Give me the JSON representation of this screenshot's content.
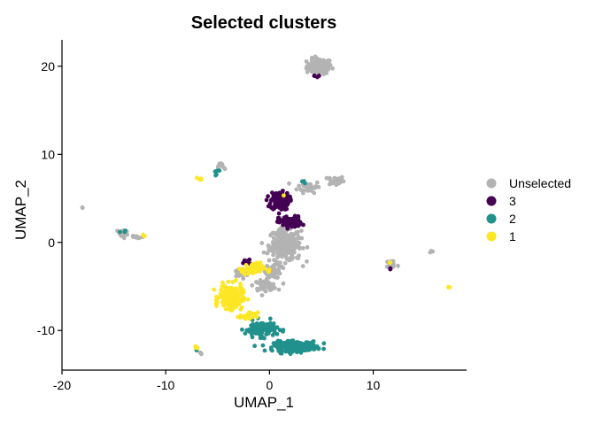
{
  "chart_data": {
    "type": "scatter",
    "title": "Selected clusters",
    "xlabel": "UMAP_1",
    "ylabel": "UMAP_2",
    "xlim": [
      -20,
      19
    ],
    "ylim": [
      -14.5,
      23
    ],
    "xticks": [
      -20,
      -10,
      0,
      10
    ],
    "yticks": [
      -10,
      0,
      10,
      20
    ],
    "grid": false,
    "legend_position": "right",
    "series": [
      {
        "name": "Unselected",
        "color": "#b3b3b3",
        "regions": [
          {
            "center": [
              4.8,
              20.0
            ],
            "spread": [
              1.1,
              0.8
            ],
            "count": 110
          },
          {
            "center": [
              6.4,
              7.0
            ],
            "spread": [
              0.7,
              0.5
            ],
            "count": 35
          },
          {
            "center": [
              3.8,
              6.3
            ],
            "spread": [
              1.0,
              0.6
            ],
            "count": 40
          },
          {
            "center": [
              1.5,
              -0.3
            ],
            "spread": [
              1.4,
              1.7
            ],
            "count": 260
          },
          {
            "center": [
              0.4,
              -3.2
            ],
            "spread": [
              0.7,
              0.8
            ],
            "count": 55
          },
          {
            "center": [
              -0.4,
              -4.9
            ],
            "spread": [
              1.0,
              0.5
            ],
            "count": 60
          },
          {
            "center": [
              -2.8,
              -3.5
            ],
            "spread": [
              0.8,
              0.5
            ],
            "count": 30
          },
          {
            "center": [
              -4.6,
              8.6
            ],
            "spread": [
              0.3,
              0.5
            ],
            "count": 10
          },
          {
            "center": [
              -14.2,
              1.0
            ],
            "spread": [
              0.5,
              0.5
            ],
            "count": 15
          },
          {
            "center": [
              -12.8,
              0.6
            ],
            "spread": [
              0.6,
              0.3
            ],
            "count": 12
          },
          {
            "center": [
              11.8,
              -2.5
            ],
            "spread": [
              0.5,
              0.5
            ],
            "count": 20
          },
          {
            "center": [
              15.6,
              -1.0
            ],
            "spread": [
              0.15,
              0.15
            ],
            "count": 3
          },
          {
            "center": [
              -18.0,
              4.0
            ],
            "spread": [
              0.12,
              0.12
            ],
            "count": 2
          },
          {
            "center": [
              -6.6,
              -12.6
            ],
            "spread": [
              0.15,
              0.15
            ],
            "count": 3
          }
        ]
      },
      {
        "name": "3",
        "color": "#440154",
        "regions": [
          {
            "center": [
              1.0,
              4.7
            ],
            "spread": [
              0.8,
              0.9
            ],
            "count": 150
          },
          {
            "center": [
              2.0,
              2.3
            ],
            "spread": [
              1.0,
              0.6
            ],
            "count": 90
          },
          {
            "center": [
              4.6,
              18.9
            ],
            "spread": [
              0.6,
              0.15
            ],
            "count": 4
          },
          {
            "center": [
              -2.0,
              -2.2
            ],
            "spread": [
              1.2,
              0.4
            ],
            "count": 10
          },
          {
            "center": [
              11.7,
              -3.0
            ],
            "spread": [
              0.1,
              0.1
            ],
            "count": 2
          }
        ]
      },
      {
        "name": "2",
        "color": "#21918c",
        "regions": [
          {
            "center": [
              2.5,
              -11.8
            ],
            "spread": [
              1.9,
              0.5
            ],
            "count": 230
          },
          {
            "center": [
              -0.8,
              -9.8
            ],
            "spread": [
              1.4,
              0.8
            ],
            "count": 120
          },
          {
            "center": [
              -5.2,
              7.7
            ],
            "spread": [
              0.6,
              0.5
            ],
            "count": 5
          },
          {
            "center": [
              3.3,
              7.0
            ],
            "spread": [
              0.2,
              0.2
            ],
            "count": 3
          },
          {
            "center": [
              -7.0,
              -12.2
            ],
            "spread": [
              0.1,
              0.1
            ],
            "count": 2
          },
          {
            "center": [
              -14.0,
              1.2
            ],
            "spread": [
              0.3,
              0.2
            ],
            "count": 3
          }
        ]
      },
      {
        "name": "1",
        "color": "#fde725",
        "regions": [
          {
            "center": [
              -3.7,
              -6.2
            ],
            "spread": [
              1.0,
              1.2
            ],
            "count": 220
          },
          {
            "center": [
              -1.6,
              -3.0
            ],
            "spread": [
              1.0,
              0.6
            ],
            "count": 60
          },
          {
            "center": [
              -2.0,
              -8.4
            ],
            "spread": [
              0.8,
              0.4
            ],
            "count": 20
          },
          {
            "center": [
              -6.7,
              7.2
            ],
            "spread": [
              0.2,
              0.15
            ],
            "count": 4
          },
          {
            "center": [
              -7.0,
              -11.8
            ],
            "spread": [
              0.2,
              0.3
            ],
            "count": 4
          },
          {
            "center": [
              -12.2,
              0.8
            ],
            "spread": [
              0.2,
              0.1
            ],
            "count": 3
          },
          {
            "center": [
              11.6,
              -2.3
            ],
            "spread": [
              0.15,
              0.1
            ],
            "count": 2
          },
          {
            "center": [
              17.2,
              -5.1
            ],
            "spread": [
              0.15,
              0.1
            ],
            "count": 3
          },
          {
            "center": [
              1.4,
              5.3
            ],
            "spread": [
              0.1,
              0.1
            ],
            "count": 1
          }
        ]
      }
    ]
  }
}
